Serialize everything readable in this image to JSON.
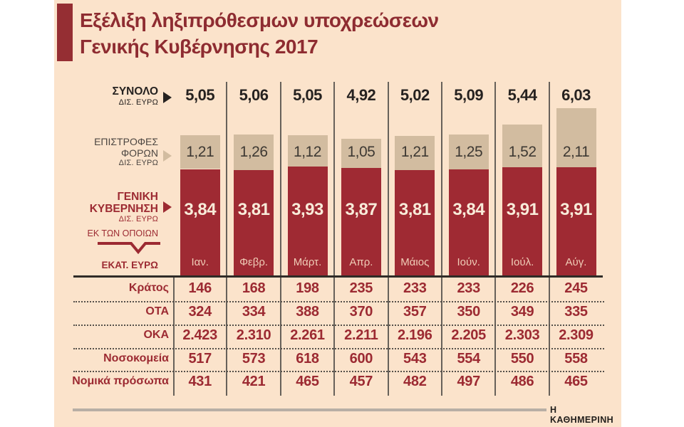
{
  "title": {
    "line1": "Εξέλιξη ληξιπρόθεσμων υποχρεώσεων",
    "line2": "Γενικής Κυβέρνησης 2017"
  },
  "left_labels": {
    "total_name": "ΣΥΝΟΛΟ",
    "total_unit": "ΔΙΣ. ΕΥΡΩ",
    "refund_line1": "ΕΠΙΣΤΡΟΦΕΣ",
    "refund_line2": "ΦΟΡΩΝ",
    "refund_unit": "ΔΙΣ. ΕΥΡΩ",
    "gov_line1": "ΓΕΝΙΚΗ",
    "gov_line2": "ΚΥΒΕΡΝΗΣΗ",
    "gov_unit": "ΔΙΣ. ΕΥΡΩ",
    "of_which": "ΕΚ ΤΩΝ ΟΠΟΙΩΝ",
    "table_unit": "ΕΚΑΤ. ΕΥΡΩ"
  },
  "chart_data": {
    "type": "bar",
    "stacked": true,
    "grid": false,
    "legend_position": "left",
    "categories": [
      "Ιαν.",
      "Φεβρ.",
      "Μάρτ.",
      "Απρ.",
      "Μάιος",
      "Ιούν.",
      "Ιούλ.",
      "Αύγ."
    ],
    "totals": {
      "name": "ΣΥΝΟΛΟ ΔΙΣ. ΕΥΡΩ",
      "values": [
        5.05,
        5.06,
        5.05,
        4.92,
        5.02,
        5.09,
        5.44,
        6.03
      ],
      "labels": [
        "5,05",
        "5,06",
        "5,05",
        "4,92",
        "5,02",
        "5,09",
        "5,44",
        "6,03"
      ]
    },
    "series": [
      {
        "name": "ΕΠΙΣΤΡΟΦΕΣ ΦΟΡΩΝ ΔΙΣ. ΕΥΡΩ",
        "color": "#d2bca0",
        "values": [
          1.21,
          1.26,
          1.12,
          1.05,
          1.21,
          1.25,
          1.52,
          2.11
        ],
        "labels": [
          "1,21",
          "1,26",
          "1,12",
          "1,05",
          "1,21",
          "1,25",
          "1,52",
          "2,11"
        ]
      },
      {
        "name": "ΓΕΝΙΚΗ ΚΥΒΕΡΝΗΣΗ ΔΙΣ. ΕΥΡΩ",
        "color": "#9f2a33",
        "values": [
          3.84,
          3.81,
          3.93,
          3.87,
          3.81,
          3.84,
          3.91,
          3.91
        ],
        "labels": [
          "3,84",
          "3,81",
          "3,93",
          "3,87",
          "3,81",
          "3,84",
          "3,91",
          "3,91"
        ]
      }
    ],
    "table": {
      "unit": "ΕΚΑΤ. ΕΥΡΩ",
      "rows": [
        {
          "label": "Κράτος",
          "values": [
            "146",
            "168",
            "198",
            "235",
            "233",
            "233",
            "226",
            "245"
          ]
        },
        {
          "label": "ΟΤΑ",
          "values": [
            "324",
            "334",
            "388",
            "370",
            "357",
            "350",
            "349",
            "335"
          ]
        },
        {
          "label": "ΟΚΑ",
          "values": [
            "2.423",
            "2.310",
            "2.261",
            "2.211",
            "2.196",
            "2.205",
            "2.303",
            "2.309"
          ]
        },
        {
          "label": "Νοσοκομεία",
          "values": [
            "517",
            "573",
            "618",
            "600",
            "543",
            "554",
            "550",
            "558"
          ]
        },
        {
          "label": "Νομικά πρόσωπα",
          "values": [
            "431",
            "421",
            "465",
            "457",
            "482",
            "497",
            "486",
            "465"
          ]
        }
      ]
    }
  },
  "footer": {
    "credit": "Η ΚΑΘΗΜΕΡΙΝΗ"
  },
  "colors": {
    "panel": "#fbe3cb",
    "accent_red": "#952e33",
    "bar_red": "#9f2a33",
    "bar_beige": "#d2bca0",
    "total_text": "#262220",
    "refund_value_text": "#3e3933",
    "gray_label": "#4c4641",
    "red_text": "#9c2a32",
    "bar_value_text": "#f8ebd9",
    "month_text": "#f0cdb7",
    "grid_line": "#67615a",
    "dark_rule": "#2f2b27",
    "gray_rule": "#b8afa5"
  }
}
